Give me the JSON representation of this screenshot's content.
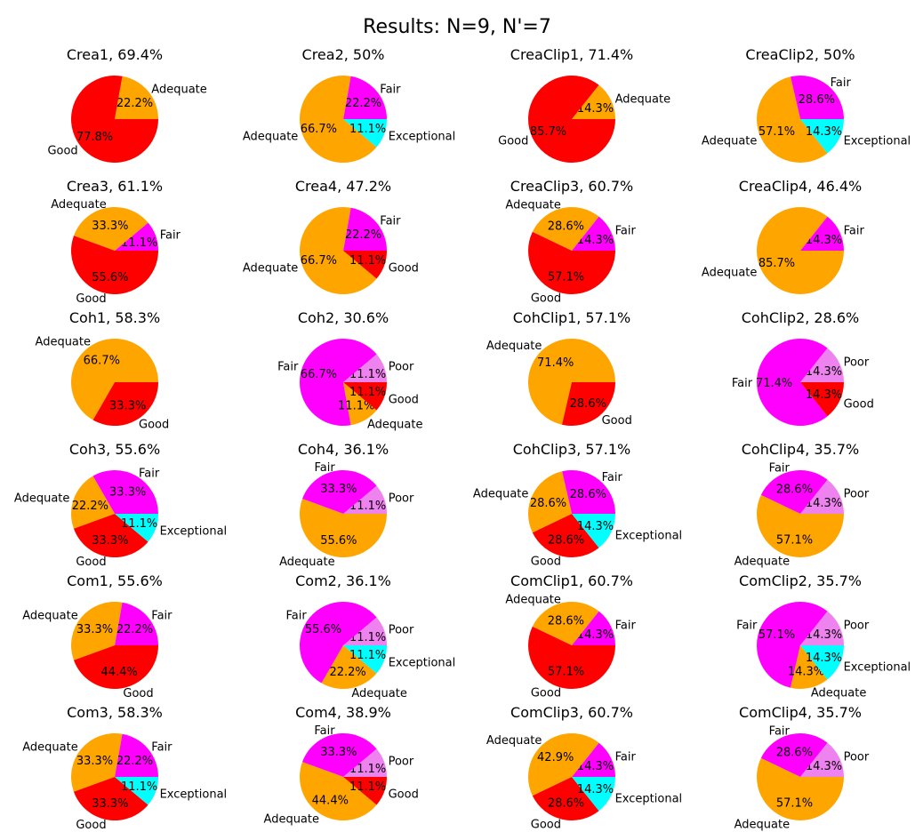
{
  "title": "Results: N=9, N'=7",
  "colors": {
    "Poor": "#ee82ee",
    "Fair": "#ff00ff",
    "Adequate": "#ffa500",
    "Good": "#ff0000",
    "Exceptional": "#00ffff"
  },
  "chart_data": [
    {
      "type": "pie",
      "title": "Crea1, 69.4%",
      "slices": [
        {
          "label": "Adequate",
          "value": 22.2
        },
        {
          "label": "Good",
          "value": 77.8
        }
      ]
    },
    {
      "type": "pie",
      "title": "Crea2, 50%",
      "slices": [
        {
          "label": "Fair",
          "value": 22.2
        },
        {
          "label": "Adequate",
          "value": 66.7
        },
        {
          "label": "Exceptional",
          "value": 11.1
        }
      ]
    },
    {
      "type": "pie",
      "title": "CreaClip1, 71.4%",
      "slices": [
        {
          "label": "Adequate",
          "value": 14.3
        },
        {
          "label": "Good",
          "value": 85.7
        }
      ]
    },
    {
      "type": "pie",
      "title": "CreaClip2, 50%",
      "slices": [
        {
          "label": "Fair",
          "value": 28.6
        },
        {
          "label": "Adequate",
          "value": 57.1
        },
        {
          "label": "Exceptional",
          "value": 14.3
        }
      ]
    },
    {
      "type": "pie",
      "title": "Crea3, 61.1%",
      "slices": [
        {
          "label": "Fair",
          "value": 11.1
        },
        {
          "label": "Adequate",
          "value": 33.3
        },
        {
          "label": "Good",
          "value": 55.6
        }
      ]
    },
    {
      "type": "pie",
      "title": "Crea4, 47.2%",
      "slices": [
        {
          "label": "Fair",
          "value": 22.2
        },
        {
          "label": "Adequate",
          "value": 66.7
        },
        {
          "label": "Good",
          "value": 11.1
        }
      ]
    },
    {
      "type": "pie",
      "title": "CreaClip3, 60.7%",
      "slices": [
        {
          "label": "Fair",
          "value": 14.3
        },
        {
          "label": "Adequate",
          "value": 28.6
        },
        {
          "label": "Good",
          "value": 57.1
        }
      ]
    },
    {
      "type": "pie",
      "title": "CreaClip4, 46.4%",
      "slices": [
        {
          "label": "Fair",
          "value": 14.3
        },
        {
          "label": "Adequate",
          "value": 85.7
        }
      ]
    },
    {
      "type": "pie",
      "title": "Coh1, 58.3%",
      "slices": [
        {
          "label": "Adequate",
          "value": 66.7
        },
        {
          "label": "Good",
          "value": 33.3
        }
      ]
    },
    {
      "type": "pie",
      "title": "Coh2, 30.6%",
      "slices": [
        {
          "label": "Poor",
          "value": 11.1
        },
        {
          "label": "Fair",
          "value": 66.7
        },
        {
          "label": "Adequate",
          "value": 11.1
        },
        {
          "label": "Good",
          "value": 11.1
        }
      ]
    },
    {
      "type": "pie",
      "title": "CohClip1, 57.1%",
      "slices": [
        {
          "label": "Adequate",
          "value": 71.4
        },
        {
          "label": "Good",
          "value": 28.6
        }
      ]
    },
    {
      "type": "pie",
      "title": "CohClip2, 28.6%",
      "slices": [
        {
          "label": "Poor",
          "value": 14.3
        },
        {
          "label": "Fair",
          "value": 71.4
        },
        {
          "label": "Good",
          "value": 14.3
        }
      ]
    },
    {
      "type": "pie",
      "title": "Coh3, 55.6%",
      "slices": [
        {
          "label": "Fair",
          "value": 33.3
        },
        {
          "label": "Adequate",
          "value": 22.2
        },
        {
          "label": "Good",
          "value": 33.3
        },
        {
          "label": "Exceptional",
          "value": 11.1
        }
      ]
    },
    {
      "type": "pie",
      "title": "Coh4, 36.1%",
      "slices": [
        {
          "label": "Poor",
          "value": 11.1
        },
        {
          "label": "Fair",
          "value": 33.3
        },
        {
          "label": "Adequate",
          "value": 55.6
        }
      ]
    },
    {
      "type": "pie",
      "title": "CohClip3, 57.1%",
      "slices": [
        {
          "label": "Fair",
          "value": 28.6
        },
        {
          "label": "Adequate",
          "value": 28.6
        },
        {
          "label": "Good",
          "value": 28.6
        },
        {
          "label": "Exceptional",
          "value": 14.3
        }
      ]
    },
    {
      "type": "pie",
      "title": "CohClip4, 35.7%",
      "slices": [
        {
          "label": "Poor",
          "value": 14.3
        },
        {
          "label": "Fair",
          "value": 28.6
        },
        {
          "label": "Adequate",
          "value": 57.1
        }
      ]
    },
    {
      "type": "pie",
      "title": "Com1, 55.6%",
      "slices": [
        {
          "label": "Fair",
          "value": 22.2
        },
        {
          "label": "Adequate",
          "value": 33.3
        },
        {
          "label": "Good",
          "value": 44.4
        }
      ]
    },
    {
      "type": "pie",
      "title": "Com2, 36.1%",
      "slices": [
        {
          "label": "Poor",
          "value": 11.1
        },
        {
          "label": "Fair",
          "value": 55.6
        },
        {
          "label": "Adequate",
          "value": 22.2
        },
        {
          "label": "Exceptional",
          "value": 11.1
        }
      ]
    },
    {
      "type": "pie",
      "title": "ComClip1, 60.7%",
      "slices": [
        {
          "label": "Fair",
          "value": 14.3
        },
        {
          "label": "Adequate",
          "value": 28.6
        },
        {
          "label": "Good",
          "value": 57.1
        }
      ]
    },
    {
      "type": "pie",
      "title": "ComClip2, 35.7%",
      "slices": [
        {
          "label": "Poor",
          "value": 14.3
        },
        {
          "label": "Fair",
          "value": 57.1
        },
        {
          "label": "Adequate",
          "value": 14.3
        },
        {
          "label": "Exceptional",
          "value": 14.3
        }
      ]
    },
    {
      "type": "pie",
      "title": "Com3, 58.3%",
      "slices": [
        {
          "label": "Fair",
          "value": 22.2
        },
        {
          "label": "Adequate",
          "value": 33.3
        },
        {
          "label": "Good",
          "value": 33.3
        },
        {
          "label": "Exceptional",
          "value": 11.1
        }
      ]
    },
    {
      "type": "pie",
      "title": "Com4, 38.9%",
      "slices": [
        {
          "label": "Poor",
          "value": 11.1
        },
        {
          "label": "Fair",
          "value": 33.3
        },
        {
          "label": "Adequate",
          "value": 44.4
        },
        {
          "label": "Good",
          "value": 11.1
        }
      ]
    },
    {
      "type": "pie",
      "title": "ComClip3, 60.7%",
      "slices": [
        {
          "label": "Fair",
          "value": 14.3
        },
        {
          "label": "Adequate",
          "value": 42.9
        },
        {
          "label": "Good",
          "value": 28.6
        },
        {
          "label": "Exceptional",
          "value": 14.3
        }
      ]
    },
    {
      "type": "pie",
      "title": "ComClip4, 35.7%",
      "slices": [
        {
          "label": "Poor",
          "value": 14.3
        },
        {
          "label": "Fair",
          "value": 28.6
        },
        {
          "label": "Adequate",
          "value": 57.1
        }
      ]
    }
  ]
}
